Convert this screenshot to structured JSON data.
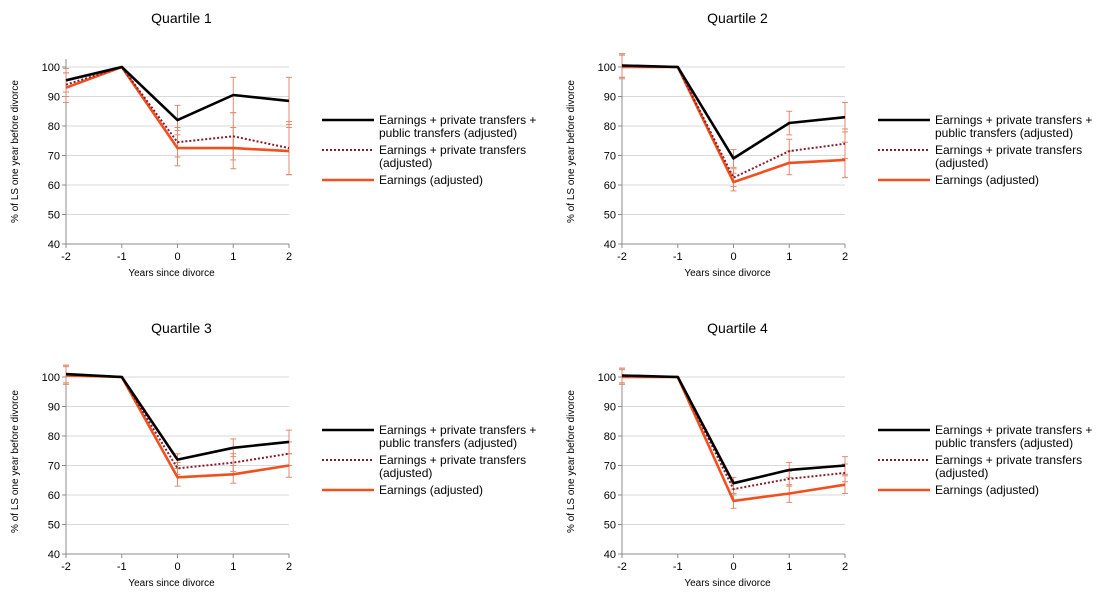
{
  "chart_data": [
    {
      "type": "line",
      "title": "Quartile 1",
      "xlabel": "Years since divorce",
      "ylabel": "% of LS one year before divorce",
      "x": [
        -2,
        -1,
        0,
        1,
        2
      ],
      "ylim": [
        40,
        100
      ],
      "yticks": [
        40,
        50,
        60,
        70,
        80,
        90,
        100
      ],
      "error_bars": true,
      "grid": true,
      "legend_position": "right",
      "series": [
        {
          "name": "Earnings + private transfers + public transfers (adjusted)",
          "style": "solid",
          "color": "#000000",
          "values": [
            95.5,
            100,
            82,
            90.5,
            88.5
          ],
          "err": [
            4,
            0,
            5,
            6,
            8
          ]
        },
        {
          "name": "Earnings + private transfers (adjusted)",
          "style": "dotted",
          "color": "#8b1a2b",
          "values": [
            94,
            100,
            74.5,
            76.5,
            72.5
          ],
          "err": [
            4,
            0,
            5,
            8,
            9
          ]
        },
        {
          "name": "Earnings (adjusted)",
          "style": "solid",
          "color": "#f0501e",
          "values": [
            93,
            100,
            72.5,
            72.5,
            71.5
          ],
          "err": [
            5,
            0,
            6,
            7,
            8
          ]
        }
      ]
    },
    {
      "type": "line",
      "title": "Quartile 2",
      "xlabel": "Years since divorce",
      "ylabel": "% of LS one year before divorce",
      "x": [
        -2,
        -1,
        0,
        1,
        2
      ],
      "ylim": [
        40,
        100
      ],
      "yticks": [
        40,
        50,
        60,
        70,
        80,
        90,
        100
      ],
      "error_bars": true,
      "grid": true,
      "legend_position": "right",
      "series": [
        {
          "name": "Earnings + private transfers + public transfers (adjusted)",
          "style": "solid",
          "color": "#000000",
          "values": [
            100.5,
            100,
            69,
            81,
            83
          ],
          "err": [
            4,
            0,
            3,
            4,
            5
          ]
        },
        {
          "name": "Earnings + private transfers (adjusted)",
          "style": "dotted",
          "color": "#8b1a2b",
          "values": [
            100.5,
            100,
            62.5,
            71.5,
            74
          ],
          "err": [
            4,
            0,
            3,
            4,
            5
          ]
        },
        {
          "name": "Earnings (adjusted)",
          "style": "solid",
          "color": "#f0501e",
          "values": [
            100,
            100,
            61,
            67.5,
            68.5
          ],
          "err": [
            4,
            0,
            3,
            4,
            6
          ]
        }
      ]
    },
    {
      "type": "line",
      "title": "Quartile 3",
      "xlabel": "Years since divorce",
      "ylabel": "% of LS one year before divorce",
      "x": [
        -2,
        -1,
        0,
        1,
        2
      ],
      "ylim": [
        40,
        100
      ],
      "yticks": [
        40,
        50,
        60,
        70,
        80,
        90,
        100
      ],
      "error_bars": true,
      "grid": true,
      "legend_position": "right",
      "series": [
        {
          "name": "Earnings + private transfers + public transfers (adjusted)",
          "style": "solid",
          "color": "#000000",
          "values": [
            101,
            100,
            72,
            76,
            78
          ],
          "err": [
            3,
            0,
            2,
            3,
            4
          ]
        },
        {
          "name": "Earnings + private transfers (adjusted)",
          "style": "dotted",
          "color": "#8b1a2b",
          "values": [
            101,
            100,
            69,
            71,
            74
          ],
          "err": [
            3,
            0,
            2,
            3,
            4
          ]
        },
        {
          "name": "Earnings (adjusted)",
          "style": "solid",
          "color": "#f0501e",
          "values": [
            100.5,
            100,
            66,
            67,
            70
          ],
          "err": [
            3,
            0,
            3,
            3,
            4
          ]
        }
      ]
    },
    {
      "type": "line",
      "title": "Quartile 4",
      "xlabel": "Years since divorce",
      "ylabel": "% of LS one year before divorce",
      "x": [
        -2,
        -1,
        0,
        1,
        2
      ],
      "ylim": [
        40,
        100
      ],
      "yticks": [
        40,
        50,
        60,
        70,
        80,
        90,
        100
      ],
      "error_bars": true,
      "grid": true,
      "legend_position": "right",
      "series": [
        {
          "name": "Earnings + private transfers + public transfers (adjusted)",
          "style": "solid",
          "color": "#000000",
          "values": [
            100.5,
            100,
            64,
            68.5,
            70
          ],
          "err": [
            2.5,
            0,
            2,
            2.5,
            3
          ]
        },
        {
          "name": "Earnings + private transfers (adjusted)",
          "style": "dotted",
          "color": "#8b1a2b",
          "values": [
            100.5,
            100,
            62,
            65.5,
            67.5
          ],
          "err": [
            2.5,
            0,
            2,
            2.5,
            3
          ]
        },
        {
          "name": "Earnings (adjusted)",
          "style": "solid",
          "color": "#f0501e",
          "values": [
            100,
            100,
            58,
            60.5,
            63.5
          ],
          "err": [
            2.5,
            0,
            2.5,
            3,
            3
          ]
        }
      ]
    }
  ],
  "colors": {
    "grid": "#d9d9d9",
    "axis": "#8c8c8c",
    "error_bar": "#e08a6f"
  }
}
